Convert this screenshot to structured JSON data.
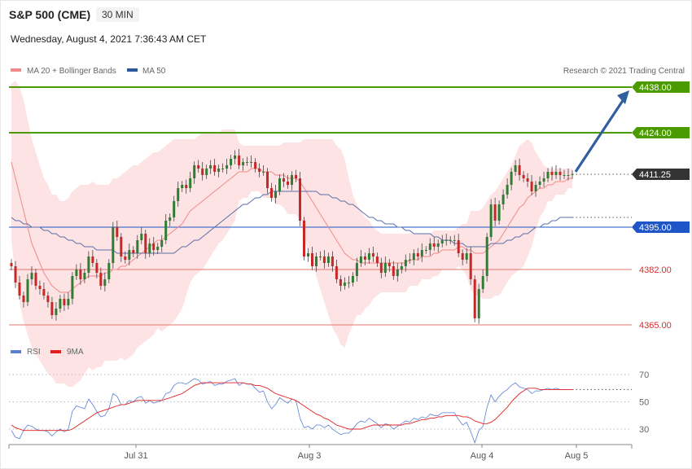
{
  "header": {
    "symbol": "S&P 500 (CME)",
    "interval": "30 MIN",
    "datetime": "Wednesday, August 4, 2021 7:36:43 AM CET"
  },
  "legend": {
    "items": [
      {
        "label": "MA 20 + Bollinger Bands",
        "color": "#f08a8a"
      },
      {
        "label": "MA 50",
        "color": "#2b5797"
      }
    ],
    "credit": "Research © 2021 Trading Central"
  },
  "colors": {
    "up_candle": "#2e7d32",
    "down_candle": "#c62828",
    "target_line": "#4a9a00",
    "pivot_line": "#1e56c8",
    "support_line": "#e57373",
    "arrow": "#2f5f9e",
    "band_fill": "#fde3e3",
    "current_tag": "#333333"
  },
  "chart_data": [
    {
      "type": "candlestick",
      "title": "",
      "x_ticks": [
        "Jul 31",
        "Aug 3",
        "Aug 4",
        "Aug 5"
      ],
      "ylim": [
        4360,
        4445
      ],
      "levels": [
        {
          "value": 4438.0,
          "label": "4438.00",
          "kind": "resistance"
        },
        {
          "value": 4424.0,
          "label": "4424.00",
          "kind": "resistance"
        },
        {
          "value": 4411.25,
          "label": "4411.25",
          "kind": "current"
        },
        {
          "value": 4395.0,
          "label": "4395.00",
          "kind": "pivot"
        },
        {
          "value": 4382.0,
          "label": "4382.00",
          "kind": "support"
        },
        {
          "value": 4365.0,
          "label": "4365.00",
          "kind": "support"
        }
      ],
      "close": [
        4383,
        4378,
        4374,
        4372,
        4379,
        4381,
        4377,
        4376,
        4374,
        4372,
        4368,
        4370,
        4373,
        4371,
        4373,
        4380,
        4382,
        4379,
        4381,
        4386,
        4384,
        4381,
        4377,
        4379,
        4384,
        4395,
        4392,
        4386,
        4385,
        4388,
        4387,
        4391,
        4393,
        4387,
        4390,
        4388,
        4389,
        4391,
        4397,
        4398,
        4403,
        4407,
        4408,
        4407,
        4410,
        4414,
        4413,
        4411,
        4413,
        4414,
        4412,
        4413,
        4413,
        4414,
        4416,
        4417,
        4414,
        4415,
        4415,
        4415,
        4413,
        4412,
        4412,
        4407,
        4404,
        4406,
        4410,
        4409,
        4408,
        4411,
        4410,
        4397,
        4386,
        4387,
        4383,
        4386,
        4386,
        4384,
        4386,
        4383,
        4379,
        4377,
        4378,
        4378,
        4380,
        4384,
        4386,
        4385,
        4387,
        4386,
        4384,
        4381,
        4384,
        4383,
        4380,
        4382,
        4383,
        4385,
        4385,
        4387,
        4386,
        4388,
        4388,
        4390,
        4389,
        4390,
        4391,
        4391,
        4391,
        4391,
        4387,
        4385,
        4387,
        4379,
        4367,
        4376,
        4380,
        4392,
        4402,
        4397,
        4402,
        4405,
        4408,
        4412,
        4414,
        4411,
        4410,
        4409,
        4406,
        4408,
        4409,
        4410,
        4412,
        4411,
        4412,
        4411,
        4411,
        4411,
        4411.25
      ],
      "bollinger_upper": [
        4439,
        4440,
        4438,
        4434,
        4428,
        4422,
        4418,
        4414,
        4410,
        4408,
        4405,
        4405,
        4403,
        4403,
        4404,
        4406,
        4407,
        4408,
        4408,
        4408,
        4409,
        4408,
        4408,
        4408,
        4408,
        4410,
        4410,
        4411,
        4412,
        4413,
        4414,
        4414,
        4415,
        4416,
        4417,
        4418,
        4418,
        4419,
        4420,
        4421,
        4422,
        4422,
        4422,
        4422,
        4422,
        4422,
        4423,
        4424,
        4424,
        4424,
        4424,
        4424,
        4425,
        4425,
        4425,
        4425,
        4421,
        4420,
        4420,
        4420,
        4420,
        4420,
        4420,
        4420,
        4420,
        4420,
        4420,
        4421,
        4421,
        4421,
        4421,
        4421,
        4422,
        4422,
        4422,
        4422,
        4422,
        4422,
        4422,
        4422,
        4420,
        4419,
        4416,
        4410,
        4405,
        4402,
        4400,
        4398,
        4397,
        4395,
        4394,
        4393,
        4393,
        4393,
        4393,
        4393,
        4393,
        4393,
        4393,
        4393,
        4393,
        4393,
        4393,
        4393,
        4394,
        4394,
        4394,
        4394,
        4394,
        4394,
        4395,
        4396,
        4396,
        4400,
        4400,
        4400,
        4401,
        4403,
        4405,
        4406,
        4408,
        4410,
        4412,
        4414,
        4417,
        4420,
        4421,
        4422,
        4421,
        4418,
        4416,
        4414,
        4413,
        4413,
        4413,
        4413,
        4413,
        4413,
        4413
      ],
      "ma20": [
        4415,
        4410,
        4405,
        4400,
        4395,
        4390,
        4387,
        4384,
        4381,
        4379,
        4377,
        4376,
        4375,
        4375,
        4375,
        4376,
        4377,
        4378,
        4379,
        4380,
        4380,
        4380,
        4380,
        4381,
        4381,
        4382,
        4382,
        4383,
        4383,
        4384,
        4385,
        4386,
        4387,
        4388,
        4389,
        4390,
        4391,
        4391,
        4392,
        4393,
        4394,
        4395,
        4396,
        4398,
        4400,
        4401,
        4402,
        4403,
        4404,
        4405,
        4406,
        4407,
        4408,
        4409,
        4410,
        4411,
        4412,
        4412,
        4412,
        4413,
        4413,
        4413,
        4412,
        4412,
        4412,
        4411,
        4411,
        4411,
        4410,
        4410,
        4410,
        4409,
        4407,
        4405,
        4403,
        4401,
        4399,
        4397,
        4395,
        4393,
        4391,
        4389,
        4387,
        4386,
        4385,
        4385,
        4384,
        4384,
        4384,
        4384,
        4384,
        4384,
        4384,
        4384,
        4384,
        4384,
        4384,
        4384,
        4385,
        4385,
        4385,
        4386,
        4386,
        4386,
        4387,
        4387,
        4388,
        4388,
        4388,
        4388,
        4389,
        4389,
        4388,
        4388,
        4387,
        4387,
        4387,
        4388,
        4389,
        4390,
        4391,
        4393,
        4395,
        4397,
        4399,
        4401,
        4402,
        4404,
        4405,
        4406,
        4407,
        4407,
        4408,
        4408,
        4409,
        4409,
        4409,
        4410,
        4410
      ],
      "ma50": [
        4398,
        4397,
        4397,
        4396,
        4396,
        4395,
        4395,
        4395,
        4394,
        4394,
        4393,
        4393,
        4392,
        4392,
        4391,
        4391,
        4390,
        4390,
        4389,
        4389,
        4389,
        4388,
        4388,
        4388,
        4388,
        4388,
        4387,
        4387,
        4387,
        4387,
        4387,
        4387,
        4387,
        4387,
        4387,
        4387,
        4387,
        4387,
        4387,
        4387,
        4387,
        4388,
        4389,
        4389,
        4390,
        4391,
        4391,
        4392,
        4393,
        4394,
        4395,
        4396,
        4397,
        4398,
        4399,
        4400,
        4401,
        4402,
        4402,
        4403,
        4404,
        4404,
        4405,
        4405,
        4406,
        4406,
        4406,
        4406,
        4406,
        4406,
        4406,
        4406,
        4406,
        4406,
        4406,
        4406,
        4405,
        4405,
        4405,
        4404,
        4404,
        4403,
        4403,
        4402,
        4402,
        4401,
        4400,
        4399,
        4398,
        4398,
        4397,
        4397,
        4396,
        4396,
        4396,
        4395,
        4395,
        4394,
        4394,
        4393,
        4393,
        4393,
        4393,
        4393,
        4392,
        4392,
        4391,
        4391,
        4391,
        4390,
        4390,
        4390,
        4389,
        4389,
        4389,
        4389,
        4389,
        4389,
        4390,
        4390,
        4390,
        4390,
        4391,
        4391,
        4392,
        4392,
        4393,
        4393,
        4394,
        4395,
        4395,
        4396,
        4396,
        4397,
        4397,
        4398,
        4398,
        4398,
        4398
      ]
    },
    {
      "type": "line",
      "title": "",
      "ylim": [
        20,
        80
      ],
      "y_ticks": [
        30,
        50,
        70
      ],
      "legend": [
        "RSI",
        "9MA"
      ],
      "rsi": [
        29,
        24,
        23,
        29,
        33,
        32,
        30,
        29,
        29,
        28,
        25,
        28,
        30,
        28,
        30,
        43,
        47,
        46,
        45,
        52,
        48,
        43,
        39,
        40,
        45,
        56,
        54,
        48,
        48,
        51,
        50,
        53,
        54,
        49,
        51,
        49,
        50,
        51,
        56,
        57,
        62,
        64,
        64,
        63,
        65,
        67,
        66,
        63,
        64,
        65,
        62,
        63,
        63,
        65,
        66,
        67,
        62,
        64,
        63,
        63,
        60,
        57,
        58,
        50,
        45,
        48,
        53,
        51,
        49,
        52,
        51,
        38,
        31,
        32,
        30,
        33,
        33,
        31,
        33,
        30,
        28,
        26,
        27,
        27,
        30,
        34,
        36,
        35,
        38,
        36,
        34,
        31,
        34,
        33,
        30,
        32,
        34,
        36,
        35,
        38,
        37,
        39,
        38,
        41,
        40,
        40,
        42,
        42,
        42,
        42,
        37,
        33,
        35,
        28,
        20,
        29,
        32,
        46,
        55,
        50,
        54,
        57,
        59,
        62,
        64,
        61,
        60,
        59,
        56,
        58,
        58,
        59,
        60,
        59,
        60,
        59,
        59,
        59,
        59
      ],
      "ma9": [
        33,
        31,
        30,
        29,
        29,
        29,
        29,
        29,
        29,
        29,
        29,
        29,
        29,
        29,
        29,
        30,
        32,
        34,
        36,
        38,
        40,
        42,
        43,
        44,
        45,
        46,
        47,
        48,
        48,
        49,
        50,
        51,
        51,
        51,
        51,
        51,
        51,
        51,
        52,
        53,
        54,
        55,
        56,
        58,
        60,
        62,
        63,
        64,
        64,
        64,
        64,
        64,
        64,
        64,
        64,
        64,
        64,
        64,
        63,
        63,
        62,
        62,
        61,
        60,
        58,
        56,
        55,
        54,
        53,
        52,
        51,
        49,
        47,
        45,
        43,
        41,
        40,
        38,
        37,
        35,
        33,
        32,
        31,
        30,
        30,
        30,
        30,
        31,
        32,
        33,
        33,
        33,
        33,
        33,
        33,
        33,
        33,
        34,
        34,
        35,
        36,
        37,
        37,
        38,
        38,
        39,
        39,
        40,
        40,
        40,
        40,
        39,
        39,
        38,
        36,
        35,
        34,
        34,
        35,
        37,
        40,
        43,
        46,
        50,
        53,
        56,
        58,
        60,
        60,
        60,
        59,
        59,
        59,
        59,
        59,
        59,
        59,
        59,
        59
      ]
    }
  ],
  "axis": {
    "x_ticks": [
      "Jul 31",
      "Aug 3",
      "Aug 4",
      "Aug 5"
    ]
  },
  "rsi_legend": {
    "rsi_label": "RSI",
    "rsi_color": "#5b7fd6",
    "ma_label": "9MA",
    "ma_color": "#e02020"
  }
}
